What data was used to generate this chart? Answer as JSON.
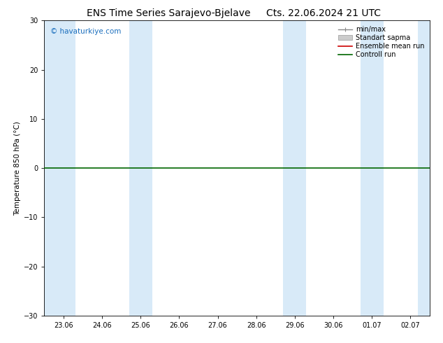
{
  "title_left": "ENS Time Series Sarajevo-Bjelave",
  "title_right": "Cts. 22.06.2024 21 UTC",
  "ylabel": "Temperature 850 hPa (°C)",
  "ylim": [
    -30,
    30
  ],
  "yticks": [
    -30,
    -20,
    -10,
    0,
    10,
    20,
    30
  ],
  "xlim": [
    -0.5,
    9.5
  ],
  "xtick_labels": [
    "23.06",
    "24.06",
    "25.06",
    "26.06",
    "27.06",
    "28.06",
    "29.06",
    "30.06",
    "01.07",
    "02.07"
  ],
  "xtick_positions": [
    0,
    1,
    2,
    3,
    4,
    5,
    6,
    7,
    8,
    9
  ],
  "shaded_bands": [
    [
      -0.5,
      0.3
    ],
    [
      1.7,
      2.3
    ],
    [
      5.7,
      6.3
    ],
    [
      7.7,
      8.3
    ],
    [
      9.2,
      9.5
    ]
  ],
  "shade_color": "#d8eaf8",
  "background_color": "#ffffff",
  "watermark": "© havaturkiye.com",
  "watermark_color": "#1a6ebd",
  "legend_items": [
    {
      "label": "min/max",
      "color": "#888888",
      "lw": 1.0
    },
    {
      "label": "Standart sapma",
      "color": "#cccccc",
      "lw": 6
    },
    {
      "label": "Ensemble mean run",
      "color": "#cc0000",
      "lw": 1.2
    },
    {
      "label": "Controll run",
      "color": "#006600",
      "lw": 1.2
    }
  ],
  "control_run_color": "#006600",
  "border_color": "#000000",
  "title_fontsize": 10,
  "tick_fontsize": 7,
  "ylabel_fontsize": 7.5,
  "legend_fontsize": 7
}
